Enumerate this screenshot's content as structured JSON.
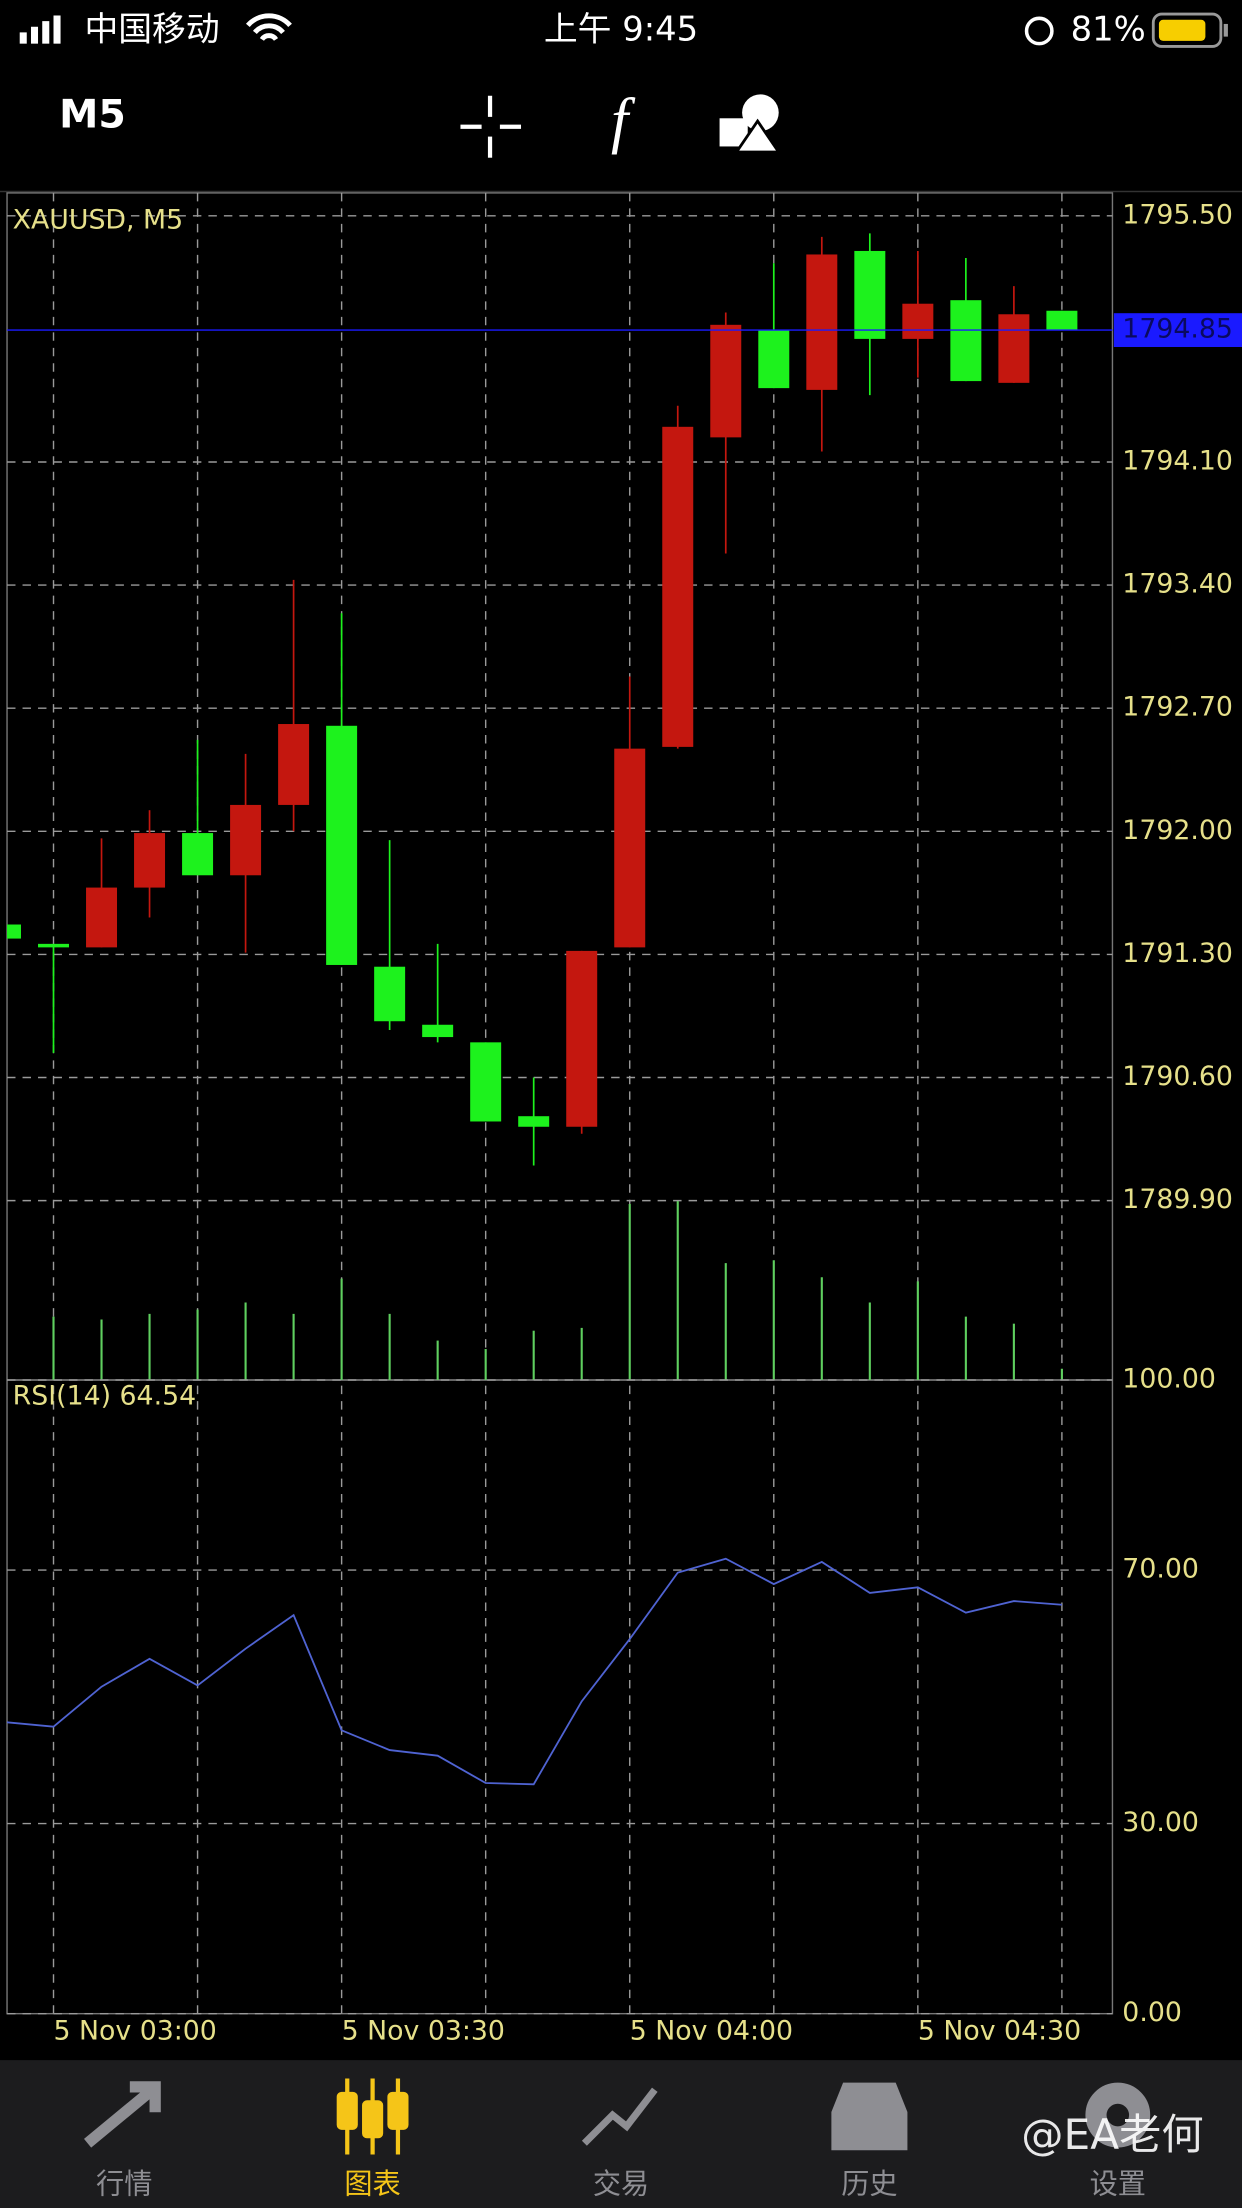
{
  "status_bar": {
    "carrier": "中国移动",
    "time": "上午 9:45",
    "battery": "81%"
  },
  "toolbar": {
    "timeframe": "M5"
  },
  "chart_data": [
    {
      "type": "candlestick",
      "title": "XAUUSD, M5",
      "categories": [
        null,
        "5 Nov 03:00",
        null,
        null,
        null,
        null,
        null,
        "5 Nov 03:30",
        null,
        null,
        null,
        null,
        null,
        "5 Nov 04:00",
        null,
        null,
        null,
        null,
        null,
        "5 Nov 04:30",
        null,
        null,
        null
      ],
      "open": [
        1791.47,
        1791.36,
        1791.34,
        1791.68,
        1791.99,
        1791.75,
        1792.15,
        1792.6,
        1791.23,
        1790.9,
        1790.8,
        1790.38,
        1790.32,
        1791.34,
        1792.48,
        1794.24,
        1794.85,
        1794.51,
        1795.3,
        1794.8,
        1795.02,
        1794.55,
        1794.96
      ],
      "high": [
        1791.47,
        1791.36,
        1791.96,
        1792.12,
        1792.52,
        1792.44,
        1793.43,
        1793.24,
        1791.95,
        1791.36,
        1790.8,
        1790.6,
        1791.32,
        1792.88,
        1794.42,
        1794.95,
        1795.23,
        1795.38,
        1795.4,
        1795.3,
        1795.26,
        1795.1,
        1794.96
      ],
      "low": [
        1791.39,
        1790.74,
        1791.34,
        1791.51,
        1791.75,
        1791.31,
        1792.0,
        1791.24,
        1790.87,
        1790.8,
        1790.35,
        1790.1,
        1790.28,
        1791.34,
        1792.47,
        1793.58,
        1794.52,
        1794.16,
        1794.48,
        1794.58,
        1794.56,
        1794.55,
        1794.85
      ],
      "close": [
        1791.39,
        1791.34,
        1791.68,
        1791.99,
        1791.75,
        1792.15,
        1792.61,
        1791.24,
        1790.92,
        1790.83,
        1790.35,
        1790.32,
        1791.32,
        1792.47,
        1794.3,
        1794.88,
        1794.52,
        1795.28,
        1794.8,
        1795.0,
        1794.56,
        1794.94,
        1794.85
      ],
      "volume": [
        null,
        45,
        43,
        47,
        50,
        55,
        47,
        72,
        47,
        28,
        22,
        35,
        37,
        125,
        127,
        83,
        85,
        73,
        55,
        70,
        45,
        40,
        8
      ],
      "up_color": "#c4170f",
      "down_color": "#1df21d",
      "volume_color": "#5fcf5f",
      "ylim": [
        1788.88,
        1795.63
      ],
      "yticks": [
        {
          "value": 1795.5,
          "label": "1795.50"
        },
        {
          "value": 1794.1,
          "label": "1794.10"
        },
        {
          "value": 1793.4,
          "label": "1793.40"
        },
        {
          "value": 1792.7,
          "label": "1792.70"
        },
        {
          "value": 1792.0,
          "label": "1792.00"
        },
        {
          "value": 1791.3,
          "label": "1791.30"
        },
        {
          "value": 1790.6,
          "label": "1790.60"
        },
        {
          "value": 1789.9,
          "label": "1789.90"
        }
      ],
      "bid": {
        "value": 1794.85,
        "label": "1794.85"
      },
      "bid_color": "#1a1aff",
      "grid": true
    },
    {
      "type": "line",
      "title": "RSI(14) 64.54",
      "values": [
        46.0,
        45.3,
        51.6,
        56.0,
        51.8,
        57.6,
        62.9,
        44.7,
        41.6,
        40.7,
        36.4,
        36.2,
        49.3,
        59.1,
        69.6,
        71.8,
        67.8,
        71.3,
        66.4,
        67.3,
        63.3,
        65.1,
        64.54
      ],
      "color": "#4f63d2",
      "ylim": [
        0,
        100
      ],
      "yticks": [
        {
          "value": 100,
          "label": "100.00"
        },
        {
          "value": 70,
          "label": "70.00"
        },
        {
          "value": 30,
          "label": "30.00"
        },
        {
          "value": 0,
          "label": "0.00"
        }
      ],
      "grid": true
    }
  ],
  "tab_bar": {
    "tabs": [
      "行情",
      "图表",
      "交易",
      "历史",
      "设置"
    ],
    "active": 1
  },
  "watermark": "@EA老何"
}
